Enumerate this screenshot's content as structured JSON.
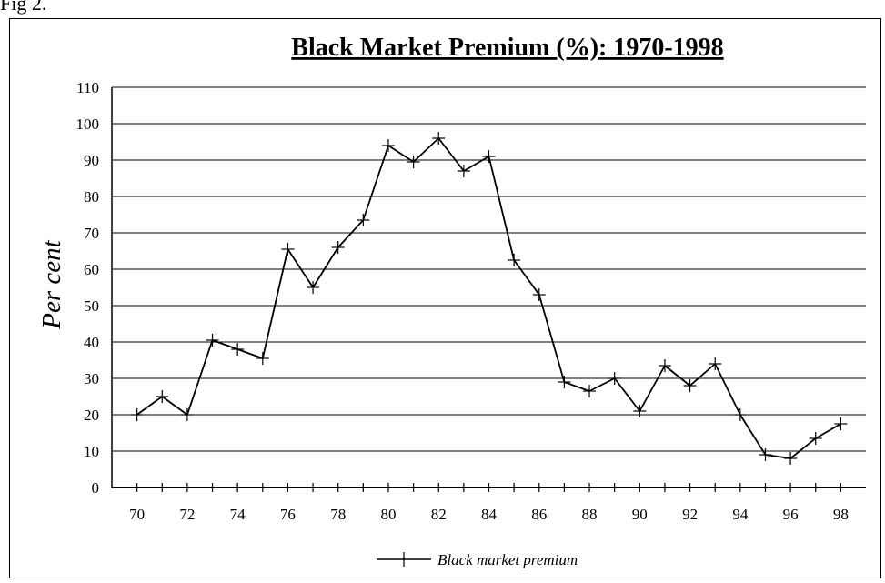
{
  "figure_label": "Fig 2.",
  "chart_data": {
    "type": "line",
    "title": "Black Market Premium (%): 1970-1998",
    "xlabel": "",
    "ylabel": "Per cent",
    "x": [
      70,
      71,
      72,
      73,
      74,
      75,
      76,
      77,
      78,
      79,
      80,
      81,
      82,
      83,
      84,
      85,
      86,
      87,
      88,
      89,
      90,
      91,
      92,
      93,
      94,
      95,
      96,
      97,
      98
    ],
    "xticklabels": [
      "70",
      "72",
      "74",
      "76",
      "78",
      "80",
      "82",
      "84",
      "86",
      "88",
      "90",
      "92",
      "94",
      "96",
      "98"
    ],
    "yticks": [
      0,
      10,
      20,
      30,
      40,
      50,
      60,
      70,
      80,
      90,
      100,
      110
    ],
    "ylim": [
      0,
      110
    ],
    "xlim": [
      69,
      99
    ],
    "grid": "horizontal",
    "legend_position": "bottom-center",
    "marker": "plus",
    "line_color": "#000000",
    "series": [
      {
        "name": "Black market premium",
        "values": [
          20,
          25,
          20,
          40.5,
          38,
          35.5,
          65.5,
          55,
          66,
          73.5,
          94,
          89.5,
          96,
          87,
          91,
          62.5,
          53,
          29,
          26.5,
          30,
          21,
          33.5,
          28,
          34,
          20,
          9,
          8,
          13.5,
          17.5
        ]
      }
    ]
  }
}
